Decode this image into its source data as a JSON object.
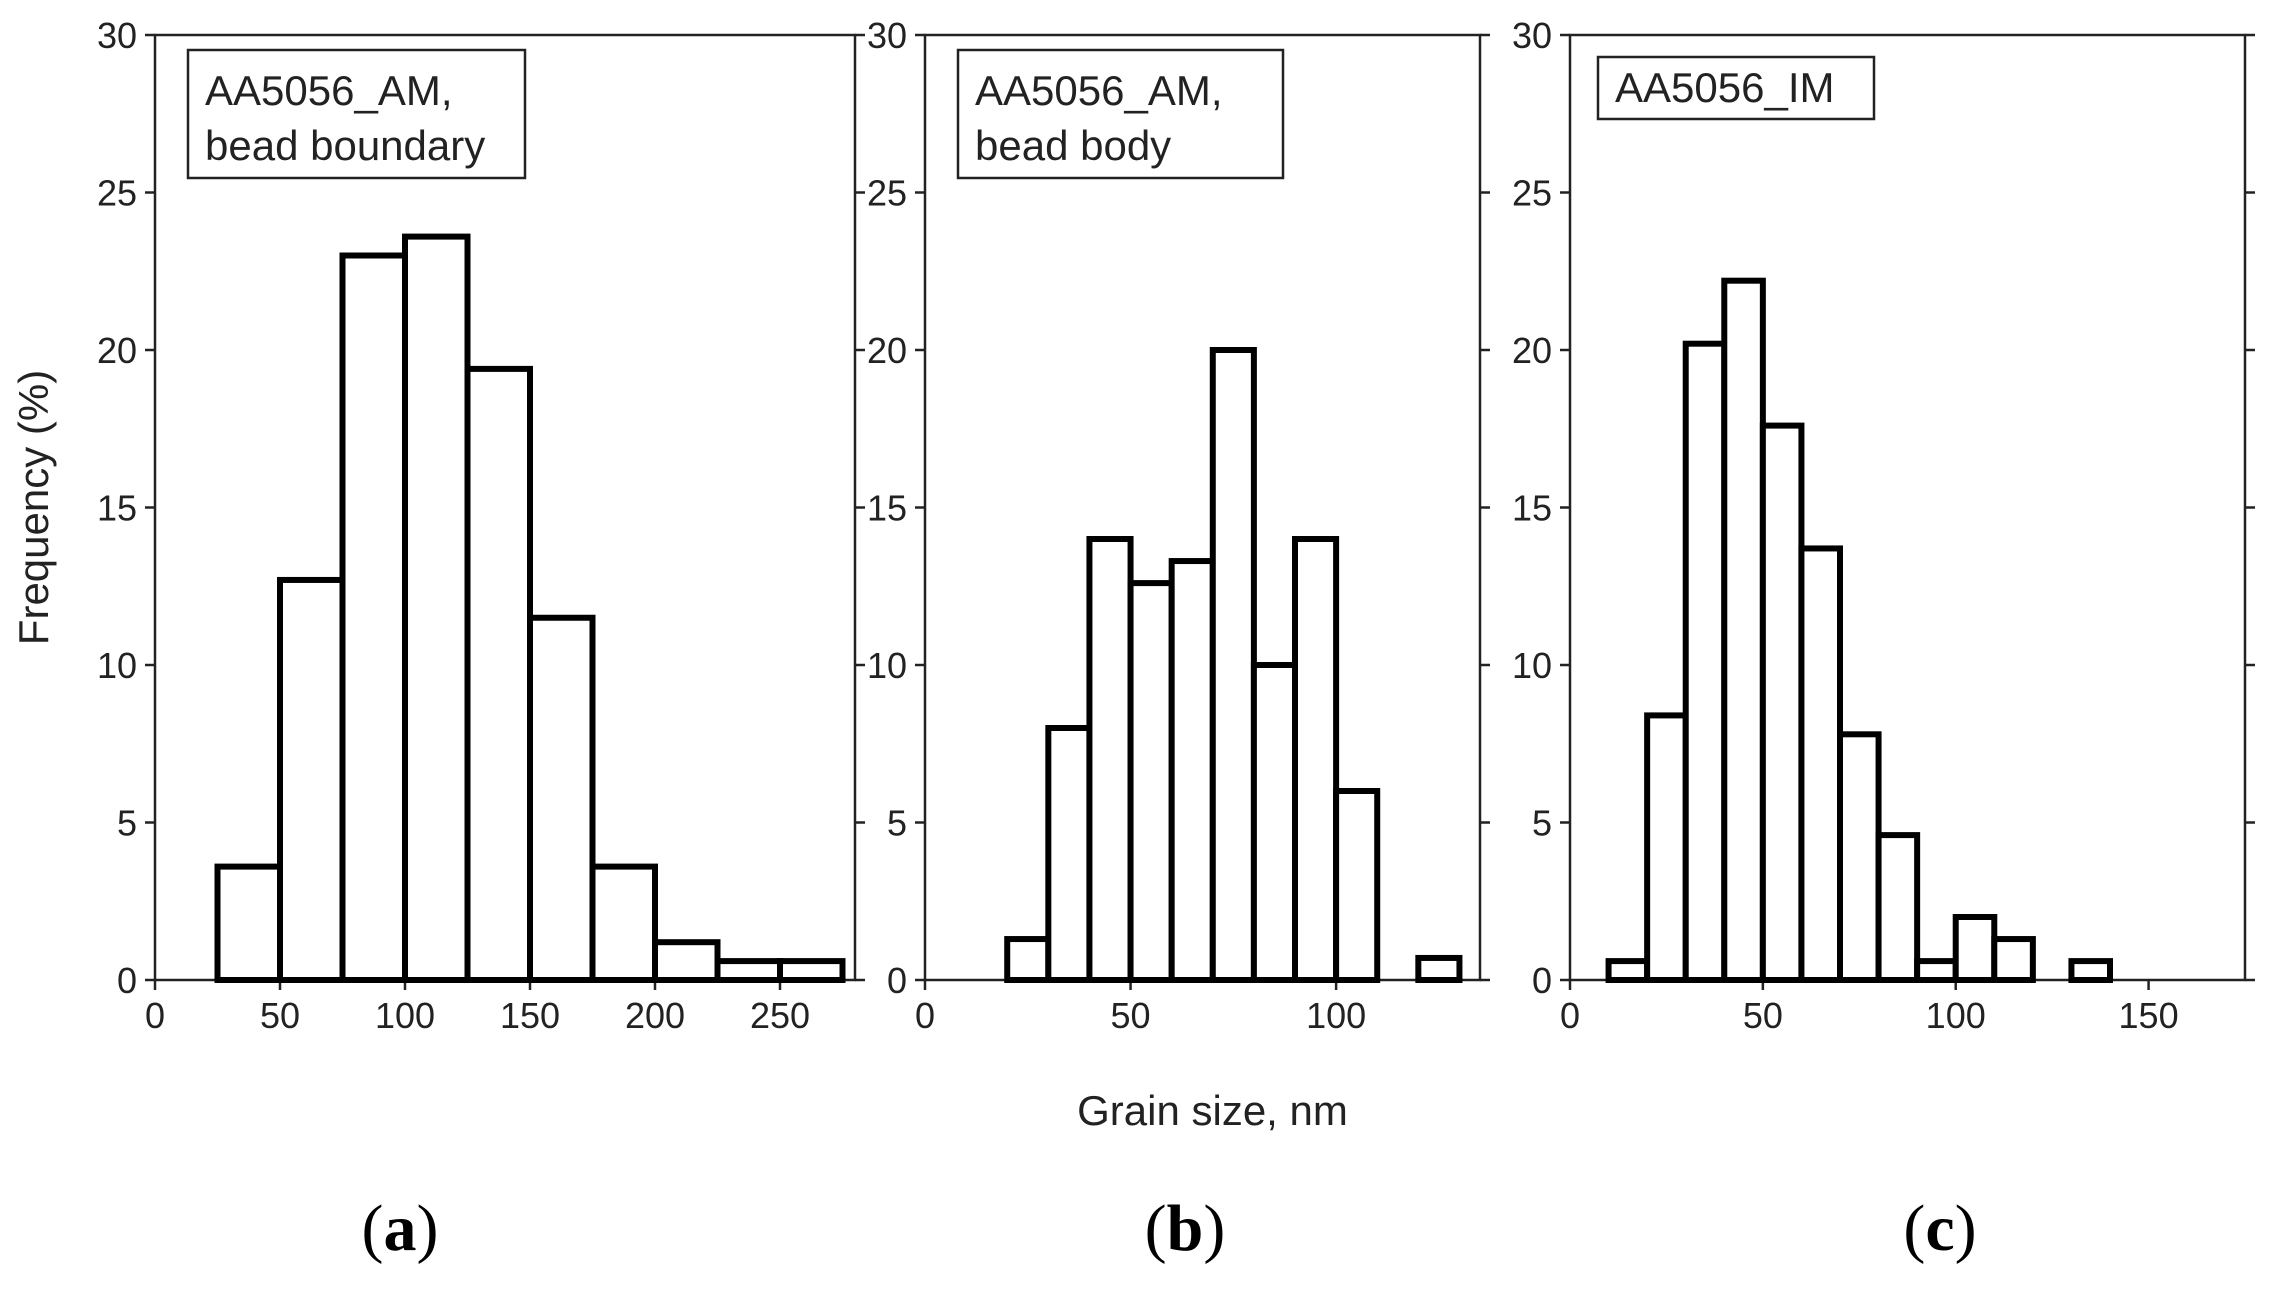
{
  "chart_data": [
    {
      "type": "bar",
      "panel_label": "a",
      "legend": [
        "AA5056_AM,",
        "bead boundary"
      ],
      "xlabel": "",
      "ylabel": "Frequency (%)",
      "xlim": [
        0,
        280
      ],
      "ylim": [
        0,
        30
      ],
      "xticks": [
        0,
        50,
        100,
        150,
        200,
        250
      ],
      "yticks": [
        0,
        5,
        10,
        15,
        20,
        25,
        30
      ],
      "bin_width": 25,
      "bin_starts": [
        25,
        50,
        75,
        100,
        125,
        150,
        175,
        200,
        225,
        250
      ],
      "values": [
        3.6,
        12.7,
        23.0,
        23.6,
        19.4,
        11.5,
        3.6,
        1.2,
        0.6,
        0.6
      ]
    },
    {
      "type": "bar",
      "panel_label": "b",
      "legend": [
        "AA5056_AM,",
        "bead body"
      ],
      "xlabel": "Grain size, nm",
      "ylabel": "",
      "xlim": [
        0,
        135
      ],
      "ylim": [
        0,
        30
      ],
      "xticks": [
        0,
        50,
        100
      ],
      "yticks": [
        0,
        5,
        10,
        15,
        20,
        25,
        30
      ],
      "bin_width": 10,
      "bin_starts": [
        20,
        30,
        40,
        50,
        60,
        70,
        80,
        90,
        100,
        110,
        120
      ],
      "values": [
        1.3,
        8.0,
        14.0,
        12.6,
        13.3,
        20.0,
        10.0,
        14.0,
        6.0,
        0.0,
        0.7
      ]
    },
    {
      "type": "bar",
      "panel_label": "c",
      "legend": [
        "AA5056_IM"
      ],
      "xlabel": "",
      "ylabel": "",
      "xlim": [
        0,
        175
      ],
      "ylim": [
        0,
        30
      ],
      "xticks": [
        0,
        50,
        100,
        150
      ],
      "yticks": [
        0,
        5,
        10,
        15,
        20,
        25,
        30
      ],
      "bin_width": 10,
      "bin_starts": [
        10,
        20,
        30,
        40,
        50,
        60,
        70,
        80,
        90,
        100,
        110,
        120,
        130
      ],
      "values": [
        0.6,
        8.4,
        20.2,
        22.2,
        17.6,
        13.7,
        7.8,
        4.6,
        0.6,
        2.0,
        1.3,
        0.0,
        0.6
      ]
    }
  ]
}
